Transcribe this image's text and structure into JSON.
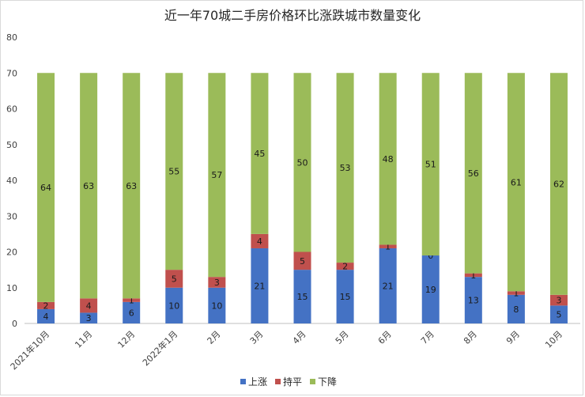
{
  "chart_data": {
    "type": "bar",
    "stacked": true,
    "title": "近一年70城二手房价格环比涨跌城市数量变化",
    "categories": [
      "2021年10月",
      "11月",
      "12月",
      "2022年1月",
      "2月",
      "3月",
      "4月",
      "5月",
      "6月",
      "7月",
      "8月",
      "9月",
      "10月"
    ],
    "series": [
      {
        "name": "上涨",
        "color": "#4472c4",
        "values": [
          4,
          3,
          6,
          10,
          10,
          21,
          15,
          15,
          21,
          19,
          13,
          8,
          5
        ]
      },
      {
        "name": "持平",
        "color": "#c0504d",
        "values": [
          2,
          4,
          1,
          5,
          3,
          4,
          5,
          2,
          1,
          0,
          1,
          1,
          3
        ]
      },
      {
        "name": "下降",
        "color": "#9bbb59",
        "values": [
          64,
          63,
          63,
          55,
          57,
          45,
          50,
          53,
          48,
          51,
          56,
          61,
          62
        ]
      }
    ],
    "ylim": [
      0,
      80
    ],
    "yticks": [
      0,
      10,
      20,
      30,
      40,
      50,
      60,
      70,
      80
    ],
    "grid": false,
    "legend": "bottom"
  }
}
